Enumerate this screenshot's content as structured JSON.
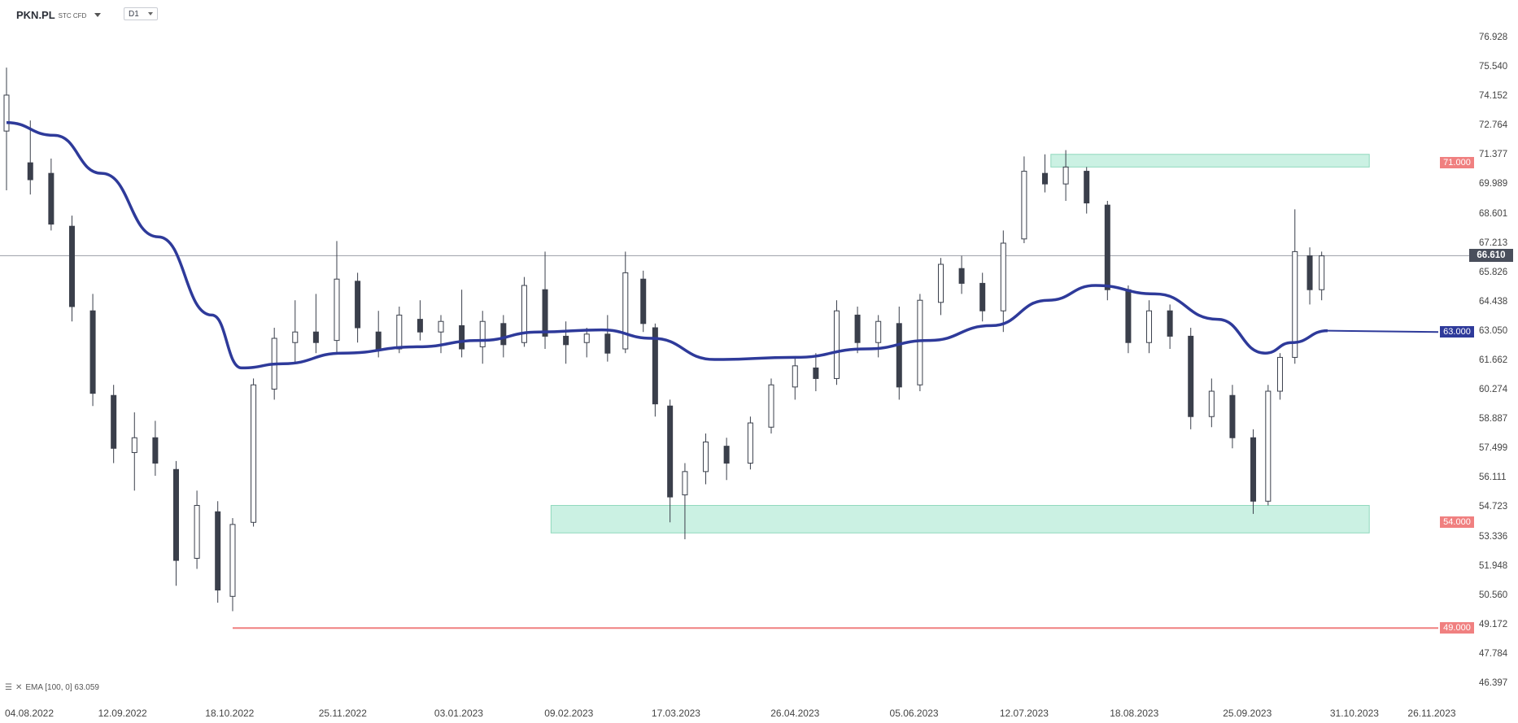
{
  "header": {
    "symbol": "PKN.PL",
    "subtitle": "STC CFD",
    "timeframe": "D1"
  },
  "indicator": {
    "label": "EMA [100, 0] 63.059"
  },
  "price_axis": [
    "76.928",
    "75.540",
    "74.152",
    "72.764",
    "71.377",
    "69.989",
    "68.601",
    "67.213",
    "65.826",
    "64.438",
    "63.050",
    "61.662",
    "60.274",
    "58.887",
    "57.499",
    "56.111",
    "54.723",
    "53.336",
    "51.948",
    "50.560",
    "49.172",
    "47.784",
    "46.397"
  ],
  "date_axis": [
    "04.08.2022",
    "12.09.2022",
    "18.10.2022",
    "25.11.2022",
    "03.01.2023",
    "09.02.2023",
    "17.03.2023",
    "26.04.2023",
    "05.06.2023",
    "12.07.2023",
    "18.08.2023",
    "25.09.2023",
    "31.10.2023",
    "26.11.2023"
  ],
  "current_price": {
    "label": "66.610",
    "value": 66.61,
    "color": "#4a4f5c"
  },
  "levels": [
    {
      "label": "71.000",
      "value": 71.0,
      "color": "#f08080"
    },
    {
      "label": "63.000",
      "value": 63.0,
      "color": "#2e3a9a"
    },
    {
      "label": "54.000",
      "value": 54.0,
      "color": "#f08080"
    },
    {
      "label": "49.000",
      "value": 49.0,
      "color": "#f08080"
    }
  ],
  "colors": {
    "bull": "#ffffff",
    "bear": "#3a3f4b",
    "ema": "#2e3a9a",
    "zone": "#b9ecd9",
    "support_line": "#f08080"
  },
  "chart_data": {
    "type": "candlestick",
    "symbol": "PKN.PL",
    "timeframe": "D1",
    "ylim": [
      46.397,
      76.928
    ],
    "zones": [
      {
        "from_date": "21.07.2023",
        "to_date": "05.11.2023",
        "low": 70.8,
        "high": 71.4
      },
      {
        "from_date": "03.02.2023",
        "to_date": "05.11.2023",
        "low": 53.5,
        "high": 54.8
      }
    ],
    "horizontal_lines": [
      {
        "value": 49.0,
        "from_date": "19.10.2022",
        "color": "#f08080"
      }
    ],
    "ema": [
      {
        "date": "04.08.2022",
        "value": 72.9
      },
      {
        "date": "20.08.2022",
        "value": 72.3
      },
      {
        "date": "05.09.2022",
        "value": 70.5
      },
      {
        "date": "24.09.2022",
        "value": 67.5
      },
      {
        "date": "12.10.2022",
        "value": 63.8
      },
      {
        "date": "22.10.2022",
        "value": 61.3
      },
      {
        "date": "05.11.2022",
        "value": 61.5
      },
      {
        "date": "25.11.2022",
        "value": 62.0
      },
      {
        "date": "20.12.2022",
        "value": 62.3
      },
      {
        "date": "10.01.2023",
        "value": 62.6
      },
      {
        "date": "30.01.2023",
        "value": 63.0
      },
      {
        "date": "20.02.2023",
        "value": 63.1
      },
      {
        "date": "09.03.2023",
        "value": 62.7
      },
      {
        "date": "30.03.2023",
        "value": 61.7
      },
      {
        "date": "26.04.2023",
        "value": 61.8
      },
      {
        "date": "20.05.2023",
        "value": 62.2
      },
      {
        "date": "10.06.2023",
        "value": 62.6
      },
      {
        "date": "01.07.2023",
        "value": 63.3
      },
      {
        "date": "20.07.2023",
        "value": 64.5
      },
      {
        "date": "05.08.2023",
        "value": 65.2
      },
      {
        "date": "25.08.2023",
        "value": 64.8
      },
      {
        "date": "15.09.2023",
        "value": 63.6
      },
      {
        "date": "01.10.2023",
        "value": 62.0
      },
      {
        "date": "10.10.2023",
        "value": 62.5
      },
      {
        "date": "22.10.2023",
        "value": 63.06
      }
    ],
    "candles": [
      {
        "date": "04.08.2022",
        "o": 72.5,
        "h": 75.5,
        "l": 69.7,
        "c": 74.2
      },
      {
        "date": "12.08.2022",
        "o": 71.0,
        "h": 73.0,
        "l": 69.5,
        "c": 70.2
      },
      {
        "date": "19.08.2022",
        "o": 70.5,
        "h": 71.2,
        "l": 67.8,
        "c": 68.1
      },
      {
        "date": "26.08.2022",
        "o": 68.0,
        "h": 68.5,
        "l": 63.5,
        "c": 64.2
      },
      {
        "date": "02.09.2022",
        "o": 64.0,
        "h": 64.8,
        "l": 59.5,
        "c": 60.1
      },
      {
        "date": "09.09.2022",
        "o": 60.0,
        "h": 60.5,
        "l": 56.8,
        "c": 57.5
      },
      {
        "date": "16.09.2022",
        "o": 57.3,
        "h": 59.2,
        "l": 55.5,
        "c": 58.0
      },
      {
        "date": "23.09.2022",
        "o": 58.0,
        "h": 58.8,
        "l": 56.2,
        "c": 56.8
      },
      {
        "date": "30.09.2022",
        "o": 56.5,
        "h": 56.9,
        "l": 51.0,
        "c": 52.2
      },
      {
        "date": "07.10.2022",
        "o": 52.3,
        "h": 55.5,
        "l": 51.8,
        "c": 54.8
      },
      {
        "date": "14.10.2022",
        "o": 54.5,
        "h": 55.0,
        "l": 50.2,
        "c": 50.8
      },
      {
        "date": "19.10.2022",
        "o": 50.5,
        "h": 54.2,
        "l": 49.8,
        "c": 53.9
      },
      {
        "date": "26.10.2022",
        "o": 54.0,
        "h": 60.8,
        "l": 53.8,
        "c": 60.5
      },
      {
        "date": "02.11.2022",
        "o": 60.3,
        "h": 63.2,
        "l": 59.8,
        "c": 62.7
      },
      {
        "date": "09.11.2022",
        "o": 62.5,
        "h": 64.5,
        "l": 61.5,
        "c": 63.0
      },
      {
        "date": "16.11.2022",
        "o": 63.0,
        "h": 64.8,
        "l": 62.0,
        "c": 62.5
      },
      {
        "date": "23.11.2022",
        "o": 62.6,
        "h": 67.3,
        "l": 62.0,
        "c": 65.5
      },
      {
        "date": "30.11.2022",
        "o": 65.4,
        "h": 65.8,
        "l": 62.5,
        "c": 63.2
      },
      {
        "date": "07.12.2022",
        "o": 63.0,
        "h": 64.0,
        "l": 61.8,
        "c": 62.2
      },
      {
        "date": "14.12.2022",
        "o": 62.2,
        "h": 64.2,
        "l": 62.0,
        "c": 63.8
      },
      {
        "date": "21.12.2022",
        "o": 63.6,
        "h": 64.5,
        "l": 62.6,
        "c": 63.0
      },
      {
        "date": "28.12.2022",
        "o": 63.0,
        "h": 63.8,
        "l": 62.0,
        "c": 63.5
      },
      {
        "date": "04.01.2023",
        "o": 63.3,
        "h": 65.0,
        "l": 61.8,
        "c": 62.2
      },
      {
        "date": "11.01.2023",
        "o": 62.3,
        "h": 64.0,
        "l": 61.5,
        "c": 63.5
      },
      {
        "date": "18.01.2023",
        "o": 63.4,
        "h": 63.8,
        "l": 61.8,
        "c": 62.4
      },
      {
        "date": "25.01.2023",
        "o": 62.5,
        "h": 65.6,
        "l": 62.3,
        "c": 65.2
      },
      {
        "date": "01.02.2023",
        "o": 65.0,
        "h": 66.8,
        "l": 62.2,
        "c": 62.8
      },
      {
        "date": "08.02.2023",
        "o": 62.8,
        "h": 63.5,
        "l": 61.5,
        "c": 62.4
      },
      {
        "date": "15.02.2023",
        "o": 62.5,
        "h": 63.2,
        "l": 61.8,
        "c": 62.9
      },
      {
        "date": "22.02.2023",
        "o": 62.9,
        "h": 63.8,
        "l": 61.6,
        "c": 62.0
      },
      {
        "date": "28.02.2023",
        "o": 62.2,
        "h": 66.8,
        "l": 62.0,
        "c": 65.8
      },
      {
        "date": "06.03.2023",
        "o": 65.5,
        "h": 65.9,
        "l": 63.0,
        "c": 63.4
      },
      {
        "date": "10.03.2023",
        "o": 63.2,
        "h": 63.4,
        "l": 59.0,
        "c": 59.6
      },
      {
        "date": "15.03.2023",
        "o": 59.5,
        "h": 59.8,
        "l": 54.0,
        "c": 55.2
      },
      {
        "date": "20.03.2023",
        "o": 55.3,
        "h": 56.8,
        "l": 53.2,
        "c": 56.4
      },
      {
        "date": "27.03.2023",
        "o": 56.4,
        "h": 58.2,
        "l": 55.8,
        "c": 57.8
      },
      {
        "date": "03.04.2023",
        "o": 57.6,
        "h": 58.0,
        "l": 56.0,
        "c": 56.8
      },
      {
        "date": "11.04.2023",
        "o": 56.8,
        "h": 59.0,
        "l": 56.5,
        "c": 58.7
      },
      {
        "date": "18.04.2023",
        "o": 58.5,
        "h": 60.8,
        "l": 58.2,
        "c": 60.5
      },
      {
        "date": "26.04.2023",
        "o": 60.4,
        "h": 61.8,
        "l": 59.8,
        "c": 61.4
      },
      {
        "date": "03.05.2023",
        "o": 61.3,
        "h": 62.0,
        "l": 60.2,
        "c": 60.8
      },
      {
        "date": "10.05.2023",
        "o": 60.8,
        "h": 64.5,
        "l": 60.5,
        "c": 64.0
      },
      {
        "date": "17.05.2023",
        "o": 63.8,
        "h": 64.2,
        "l": 62.0,
        "c": 62.5
      },
      {
        "date": "24.05.2023",
        "o": 62.5,
        "h": 63.8,
        "l": 61.8,
        "c": 63.5
      },
      {
        "date": "31.05.2023",
        "o": 63.4,
        "h": 64.2,
        "l": 59.8,
        "c": 60.4
      },
      {
        "date": "07.06.2023",
        "o": 60.5,
        "h": 64.8,
        "l": 60.2,
        "c": 64.5
      },
      {
        "date": "14.06.2023",
        "o": 64.4,
        "h": 66.5,
        "l": 63.8,
        "c": 66.2
      },
      {
        "date": "21.06.2023",
        "o": 66.0,
        "h": 66.6,
        "l": 64.8,
        "c": 65.3
      },
      {
        "date": "28.06.2023",
        "o": 65.3,
        "h": 65.8,
        "l": 63.5,
        "c": 64.0
      },
      {
        "date": "05.07.2023",
        "o": 64.0,
        "h": 67.8,
        "l": 63.0,
        "c": 67.2
      },
      {
        "date": "12.07.2023",
        "o": 67.4,
        "h": 71.3,
        "l": 67.2,
        "c": 70.6
      },
      {
        "date": "19.07.2023",
        "o": 70.5,
        "h": 71.4,
        "l": 69.6,
        "c": 70.0
      },
      {
        "date": "26.07.2023",
        "o": 70.0,
        "h": 71.6,
        "l": 69.2,
        "c": 70.8
      },
      {
        "date": "02.08.2023",
        "o": 70.6,
        "h": 70.8,
        "l": 68.6,
        "c": 69.1
      },
      {
        "date": "09.08.2023",
        "o": 69.0,
        "h": 69.2,
        "l": 64.5,
        "c": 65.0
      },
      {
        "date": "16.08.2023",
        "o": 65.0,
        "h": 65.2,
        "l": 62.0,
        "c": 62.5
      },
      {
        "date": "23.08.2023",
        "o": 62.5,
        "h": 64.5,
        "l": 62.0,
        "c": 64.0
      },
      {
        "date": "30.08.2023",
        "o": 64.0,
        "h": 64.3,
        "l": 62.2,
        "c": 62.8
      },
      {
        "date": "06.09.2023",
        "o": 62.8,
        "h": 63.2,
        "l": 58.4,
        "c": 59.0
      },
      {
        "date": "13.09.2023",
        "o": 59.0,
        "h": 60.8,
        "l": 58.5,
        "c": 60.2
      },
      {
        "date": "20.09.2023",
        "o": 60.0,
        "h": 60.5,
        "l": 57.5,
        "c": 58.0
      },
      {
        "date": "27.09.2023",
        "o": 58.0,
        "h": 58.4,
        "l": 54.4,
        "c": 55.0
      },
      {
        "date": "02.10.2023",
        "o": 55.0,
        "h": 60.5,
        "l": 54.8,
        "c": 60.2
      },
      {
        "date": "06.10.2023",
        "o": 60.2,
        "h": 62.0,
        "l": 59.8,
        "c": 61.8
      },
      {
        "date": "11.10.2023",
        "o": 61.8,
        "h": 68.8,
        "l": 61.5,
        "c": 66.8
      },
      {
        "date": "16.10.2023",
        "o": 66.6,
        "h": 67.0,
        "l": 64.3,
        "c": 65.0
      },
      {
        "date": "20.10.2023",
        "o": 65.0,
        "h": 66.8,
        "l": 64.5,
        "c": 66.6
      }
    ]
  }
}
